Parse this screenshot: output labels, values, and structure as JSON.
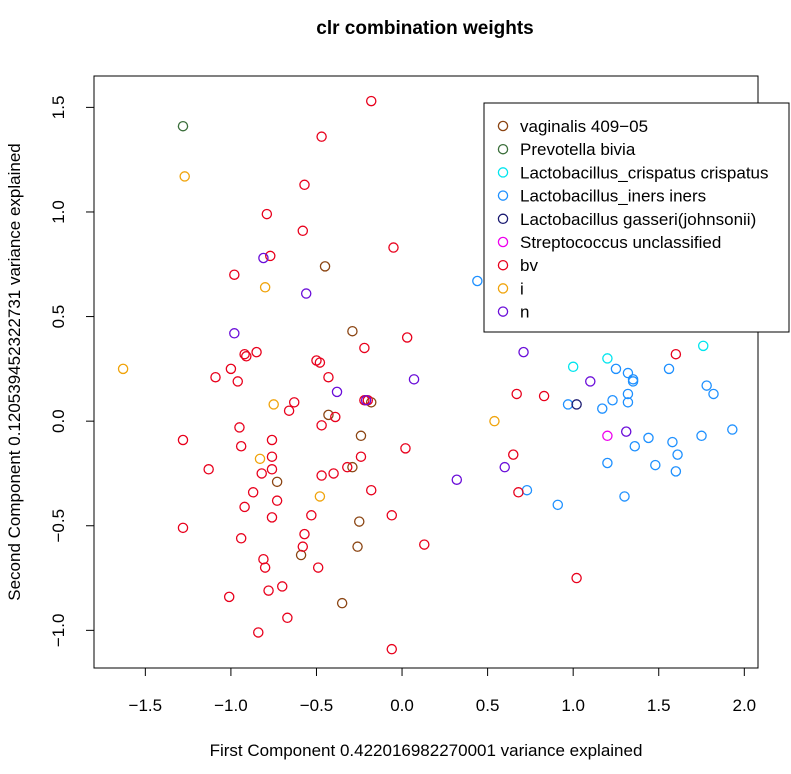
{
  "chart_data": {
    "type": "scatter",
    "title": "clr combination weights",
    "xlabel": "First Component 0.422016982270001 variance explained",
    "ylabel": "Second Component 0.120539452322731 variance explained",
    "xlim": [
      -1.8,
      2.08
    ],
    "ylim": [
      -1.18,
      1.65
    ],
    "xticks": [
      -1.5,
      -1.0,
      -0.5,
      0.0,
      0.5,
      1.0,
      1.5,
      2.0
    ],
    "xtick_labels": [
      "−1.5",
      "−1.0",
      "−0.5",
      "0.0",
      "0.5",
      "1.0",
      "1.5",
      "2.0"
    ],
    "yticks": [
      -1.0,
      -0.5,
      0.0,
      0.5,
      1.0,
      1.5
    ],
    "ytick_labels": [
      "−1.0",
      "−0.5",
      "0.0",
      "0.5",
      "1.0",
      "1.5"
    ],
    "grid": false,
    "legend_position": "top-right",
    "series": [
      {
        "name": "vaginalis 409−05",
        "color": "#8B4513",
        "points": [
          [
            -0.45,
            0.74
          ],
          [
            -0.29,
            0.43
          ],
          [
            -0.43,
            0.03
          ],
          [
            -0.24,
            -0.07
          ],
          [
            -0.29,
            -0.22
          ],
          [
            -0.73,
            -0.29
          ],
          [
            -0.25,
            -0.48
          ],
          [
            -0.59,
            -0.64
          ],
          [
            -0.26,
            -0.6
          ],
          [
            -0.35,
            -0.87
          ],
          [
            -0.18,
            0.09
          ]
        ]
      },
      {
        "name": "Prevotella bivia",
        "color": "#3A6E3A",
        "points": [
          [
            -1.28,
            1.41
          ]
        ]
      },
      {
        "name": "Lactobacillus_crispatus crispatus",
        "color": "#00E5EE",
        "points": [
          [
            1.0,
            0.26
          ],
          [
            1.2,
            0.3
          ],
          [
            1.76,
            0.36
          ]
        ]
      },
      {
        "name": "Lactobacillus_iners iners",
        "color": "#1E90FF",
        "points": [
          [
            0.44,
            0.67
          ],
          [
            1.25,
            0.25
          ],
          [
            1.32,
            0.23
          ],
          [
            1.35,
            0.2
          ],
          [
            1.35,
            0.19
          ],
          [
            1.56,
            0.25
          ],
          [
            1.78,
            0.17
          ],
          [
            1.82,
            0.13
          ],
          [
            1.32,
            0.13
          ],
          [
            1.23,
            0.1
          ],
          [
            1.32,
            0.09
          ],
          [
            0.97,
            0.08
          ],
          [
            1.17,
            0.06
          ],
          [
            1.36,
            -0.12
          ],
          [
            1.44,
            -0.08
          ],
          [
            1.58,
            -0.1
          ],
          [
            1.61,
            -0.16
          ],
          [
            1.75,
            -0.07
          ],
          [
            1.93,
            -0.04
          ],
          [
            1.2,
            -0.2
          ],
          [
            1.48,
            -0.21
          ],
          [
            1.6,
            -0.24
          ],
          [
            1.3,
            -0.36
          ],
          [
            0.73,
            -0.33
          ],
          [
            0.91,
            -0.4
          ]
        ]
      },
      {
        "name": "Lactobacillus gasseri(johnsonii)",
        "color": "#191970",
        "points": [
          [
            1.02,
            0.08
          ]
        ]
      },
      {
        "name": "Streptococcus unclassified",
        "color": "#EE00EE",
        "points": [
          [
            1.2,
            -0.07
          ]
        ]
      },
      {
        "name": "bv",
        "color": "#E8001C",
        "points": [
          [
            -0.18,
            1.53
          ],
          [
            -0.47,
            1.36
          ],
          [
            -0.57,
            1.13
          ],
          [
            -0.79,
            0.99
          ],
          [
            -0.58,
            0.91
          ],
          [
            -0.05,
            0.83
          ],
          [
            -0.77,
            0.79
          ],
          [
            -0.98,
            0.7
          ],
          [
            0.03,
            0.4
          ],
          [
            -0.22,
            0.35
          ],
          [
            -0.85,
            0.33
          ],
          [
            -0.92,
            0.32
          ],
          [
            -0.91,
            0.31
          ],
          [
            -0.5,
            0.29
          ],
          [
            -0.48,
            0.28
          ],
          [
            -1.0,
            0.25
          ],
          [
            -1.09,
            0.21
          ],
          [
            -0.96,
            0.19
          ],
          [
            -0.43,
            0.21
          ],
          [
            -0.63,
            0.09
          ],
          [
            -0.66,
            0.05
          ],
          [
            -0.2,
            0.1
          ],
          [
            -0.22,
            0.1
          ],
          [
            -0.39,
            0.02
          ],
          [
            -0.47,
            -0.02
          ],
          [
            -0.95,
            -0.03
          ],
          [
            -0.76,
            -0.09
          ],
          [
            -1.28,
            -0.09
          ],
          [
            -0.94,
            -0.12
          ],
          [
            0.02,
            -0.13
          ],
          [
            -0.76,
            -0.17
          ],
          [
            -0.24,
            -0.17
          ],
          [
            -0.32,
            -0.22
          ],
          [
            -1.13,
            -0.23
          ],
          [
            -0.76,
            -0.23
          ],
          [
            -0.82,
            -0.25
          ],
          [
            -0.47,
            -0.26
          ],
          [
            -0.4,
            -0.25
          ],
          [
            -0.87,
            -0.34
          ],
          [
            -0.18,
            -0.33
          ],
          [
            -0.73,
            -0.38
          ],
          [
            -0.92,
            -0.41
          ],
          [
            -0.53,
            -0.45
          ],
          [
            -0.76,
            -0.46
          ],
          [
            -0.06,
            -0.45
          ],
          [
            -0.57,
            -0.54
          ],
          [
            -1.28,
            -0.51
          ],
          [
            -0.94,
            -0.56
          ],
          [
            -0.58,
            -0.6
          ],
          [
            0.13,
            -0.59
          ],
          [
            -0.81,
            -0.66
          ],
          [
            -0.8,
            -0.7
          ],
          [
            -0.49,
            -0.7
          ],
          [
            -0.7,
            -0.79
          ],
          [
            -0.78,
            -0.81
          ],
          [
            -1.01,
            -0.84
          ],
          [
            -0.67,
            -0.94
          ],
          [
            -0.84,
            -1.01
          ],
          [
            -0.06,
            -1.09
          ],
          [
            0.65,
            -0.16
          ],
          [
            0.68,
            -0.34
          ],
          [
            0.67,
            0.13
          ],
          [
            0.83,
            0.12
          ],
          [
            1.02,
            -0.75
          ],
          [
            1.6,
            0.32
          ]
        ]
      },
      {
        "name": "i",
        "color": "#F0A30A",
        "points": [
          [
            -1.27,
            1.17
          ],
          [
            -0.8,
            0.64
          ],
          [
            -1.63,
            0.25
          ],
          [
            -0.75,
            0.08
          ],
          [
            -0.83,
            -0.18
          ],
          [
            -0.48,
            -0.36
          ],
          [
            0.54,
            0.0
          ]
        ]
      },
      {
        "name": "n",
        "color": "#6A0DD9",
        "points": [
          [
            -0.81,
            0.78
          ],
          [
            -0.56,
            0.61
          ],
          [
            -0.98,
            0.42
          ],
          [
            0.71,
            0.33
          ],
          [
            -0.38,
            0.14
          ],
          [
            0.07,
            0.2
          ],
          [
            -0.21,
            0.1
          ],
          [
            1.1,
            0.19
          ],
          [
            1.31,
            -0.05
          ],
          [
            0.6,
            -0.22
          ],
          [
            0.32,
            -0.28
          ]
        ]
      }
    ]
  }
}
